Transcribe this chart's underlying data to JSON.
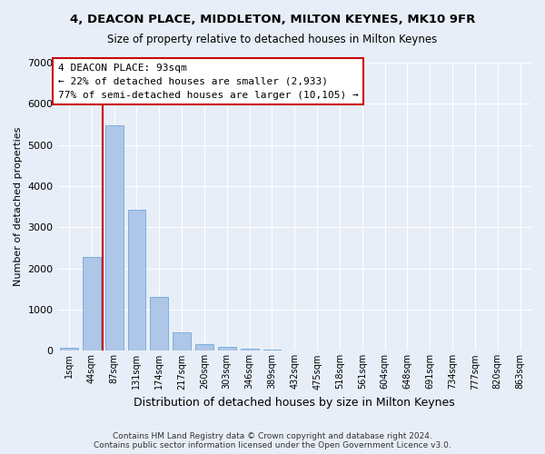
{
  "title": "4, DEACON PLACE, MIDDLETON, MILTON KEYNES, MK10 9FR",
  "subtitle": "Size of property relative to detached houses in Milton Keynes",
  "xlabel": "Distribution of detached houses by size in Milton Keynes",
  "ylabel": "Number of detached properties",
  "footer_line1": "Contains HM Land Registry data © Crown copyright and database right 2024.",
  "footer_line2": "Contains public sector information licensed under the Open Government Licence v3.0.",
  "bar_labels": [
    "1sqm",
    "44sqm",
    "87sqm",
    "131sqm",
    "174sqm",
    "217sqm",
    "260sqm",
    "303sqm",
    "346sqm",
    "389sqm",
    "432sqm",
    "475sqm",
    "518sqm",
    "561sqm",
    "604sqm",
    "648sqm",
    "691sqm",
    "734sqm",
    "777sqm",
    "820sqm",
    "863sqm"
  ],
  "bar_values": [
    75,
    2270,
    5470,
    3430,
    1310,
    460,
    165,
    100,
    60,
    40,
    0,
    0,
    0,
    0,
    0,
    0,
    0,
    0,
    0,
    0,
    0
  ],
  "bar_color": "#aec6e8",
  "bar_edgecolor": "#5a9fd4",
  "background_color": "#e8eef8",
  "grid_color": "#ffffff",
  "vline_color": "#cc0000",
  "vline_x": 1.5,
  "annotation_text": "4 DEACON PLACE: 93sqm\n← 22% of detached houses are smaller (2,933)\n77% of semi-detached houses are larger (10,105) →",
  "annotation_box_edgecolor": "#cc0000",
  "annotation_box_facecolor": "#ffffff",
  "ylim": [
    0,
    7000
  ],
  "yticks": [
    0,
    1000,
    2000,
    3000,
    4000,
    5000,
    6000,
    7000
  ]
}
